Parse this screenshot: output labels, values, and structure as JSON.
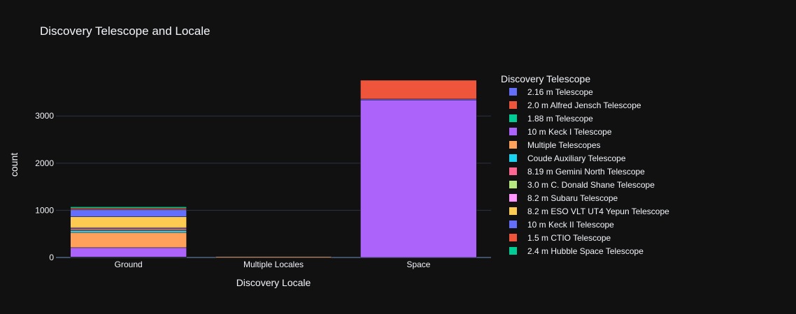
{
  "chart_data": {
    "type": "bar",
    "barmode": "stack",
    "title": "Discovery Telescope and Locale",
    "xlabel": "Discovery Locale",
    "ylabel": "count",
    "categories": [
      "Ground",
      "Multiple Locales",
      "Space"
    ],
    "ylim": [
      0,
      3980
    ],
    "yticks": [
      0,
      1000,
      2000,
      3000
    ],
    "ytick_labels": [
      "0",
      "1000",
      "2000",
      "3000"
    ],
    "grid": true,
    "legend_title": "Discovery Telescope",
    "legend_position": "right",
    "series": [
      {
        "name": "2.16 m Telescope",
        "color": "#636efa",
        "values": [
          2,
          0,
          0
        ]
      },
      {
        "name": "2.0 m Alfred Jensch Telescope",
        "color": "#EF553B",
        "values": [
          3,
          0,
          0
        ]
      },
      {
        "name": "1.88 m Telescope",
        "color": "#00cc96",
        "values": [
          4,
          0,
          0
        ]
      },
      {
        "name": "10 m Keck I Telescope",
        "color": "#ab63fa",
        "values": [
          200,
          0,
          3340
        ]
      },
      {
        "name": "Multiple Telescopes",
        "color": "#FFA15A",
        "values": [
          320,
          20,
          0
        ]
      },
      {
        "name": "Coude Auxiliary Telescope",
        "color": "#19d3f3",
        "values": [
          40,
          0,
          0
        ]
      },
      {
        "name": "8.19 m Gemini North Telescope",
        "color": "#FF6692",
        "values": [
          25,
          0,
          0
        ]
      },
      {
        "name": "3.0 m C. Donald Shane Telescope",
        "color": "#B6E880",
        "values": [
          20,
          0,
          0
        ]
      },
      {
        "name": "8.2 m Subaru Telescope",
        "color": "#FF97FF",
        "values": [
          20,
          0,
          0
        ]
      },
      {
        "name": "8.2 m ESO VLT UT4 Yepun Telescope",
        "color": "#FECB52",
        "values": [
          230,
          0,
          0
        ]
      },
      {
        "name": "10 m Keck II Telescope",
        "color": "#636efa",
        "values": [
          150,
          0,
          20
        ]
      },
      {
        "name": "1.5 m CTIO Telescope",
        "color": "#EF553B",
        "values": [
          30,
          0,
          400
        ]
      },
      {
        "name": "2.4 m Hubble Space Telescope",
        "color": "#00cc96",
        "values": [
          30,
          0,
          5
        ]
      }
    ]
  }
}
